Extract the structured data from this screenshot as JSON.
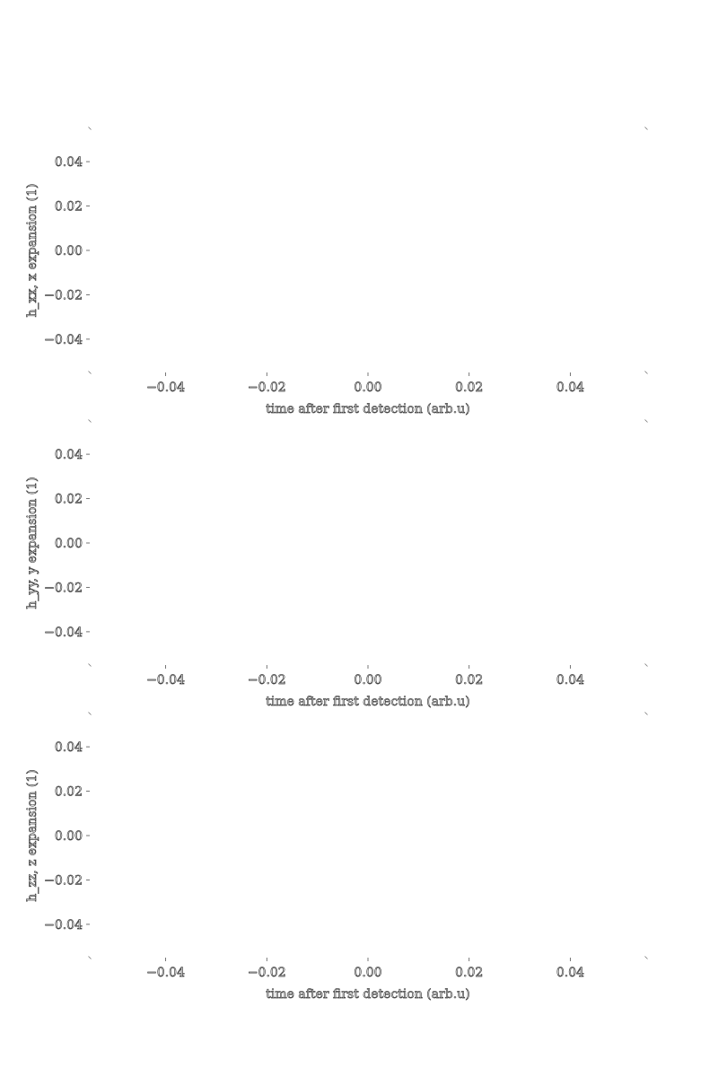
{
  "chart_data": [
    {
      "type": "line",
      "ylabel": "h_xx, x expansion (1)",
      "xlabel": "time after first detection (arb.u)",
      "xlim": [
        -0.055,
        0.055
      ],
      "ylim": [
        -0.055,
        0.055
      ],
      "xticks": [
        -0.04,
        -0.02,
        0.0,
        0.02,
        0.04
      ],
      "xtick_labels": [
        "−0.04",
        "−0.02",
        "0.00",
        "0.02",
        "0.04"
      ],
      "yticks": [
        0.04,
        0.02,
        0.0,
        -0.02,
        -0.04
      ],
      "ytick_labels": [
        "0.04",
        "0.02",
        "0.00",
        "−0.02",
        "−0.04"
      ],
      "series": [],
      "grid": false
    },
    {
      "type": "line",
      "ylabel": "h_yy, y expansion (1)",
      "xlabel": "time after first detection (arb.u)",
      "xlim": [
        -0.055,
        0.055
      ],
      "ylim": [
        -0.055,
        0.055
      ],
      "xticks": [
        -0.04,
        -0.02,
        0.0,
        0.02,
        0.04
      ],
      "xtick_labels": [
        "−0.04",
        "−0.02",
        "0.00",
        "0.02",
        "0.04"
      ],
      "yticks": [
        0.04,
        0.02,
        0.0,
        -0.02,
        -0.04
      ],
      "ytick_labels": [
        "0.04",
        "0.02",
        "0.00",
        "−0.02",
        "−0.04"
      ],
      "series": [],
      "grid": false
    },
    {
      "type": "line",
      "ylabel": "h_zz, z expansion (1)",
      "xlabel": "time after first detection (arb.u)",
      "xlim": [
        -0.055,
        0.055
      ],
      "ylim": [
        -0.055,
        0.055
      ],
      "xticks": [
        -0.04,
        -0.02,
        0.0,
        0.02,
        0.04
      ],
      "xtick_labels": [
        "−0.04",
        "−0.02",
        "0.00",
        "0.02",
        "0.04"
      ],
      "yticks": [
        0.04,
        0.02,
        0.0,
        -0.02,
        -0.04
      ],
      "ytick_labels": [
        "0.04",
        "0.02",
        "0.00",
        "−0.02",
        "−0.04"
      ],
      "series": [],
      "grid": false
    }
  ]
}
